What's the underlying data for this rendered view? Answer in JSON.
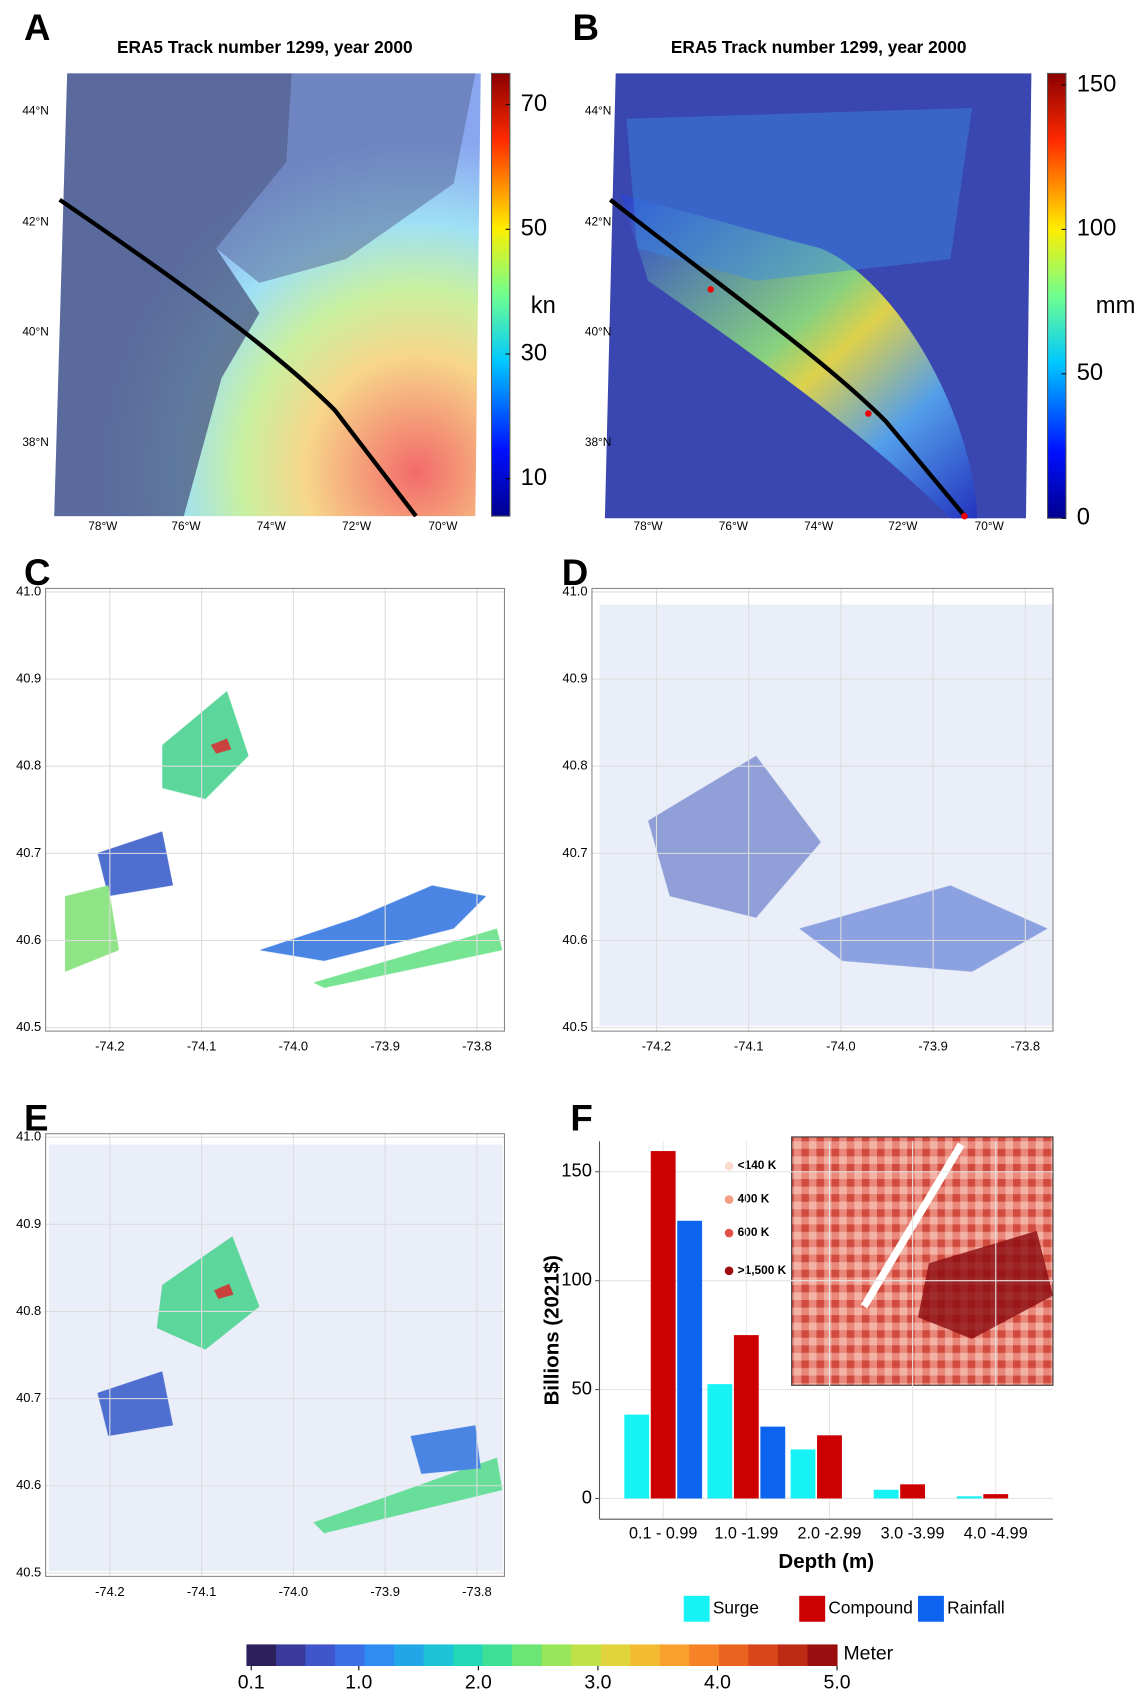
{
  "panel_labels": [
    "A",
    "B",
    "C",
    "D",
    "E",
    "F"
  ],
  "map_a": {
    "title": "ERA5 Track number 1299, year 2000",
    "lat_labels": [
      "44°N",
      "42°N",
      "40°N",
      "38°N"
    ],
    "lon_labels": [
      "78°W",
      "76°W",
      "74°W",
      "72°W",
      "70°W"
    ],
    "colorbar": {
      "unit": "kn",
      "lim": [
        4,
        75
      ],
      "ticks": [
        10,
        30,
        50,
        70
      ]
    }
  },
  "map_b": {
    "title": "ERA5 Track number 1299, year 2000",
    "lat_labels": [
      "44°N",
      "42°N",
      "40°N",
      "38°N"
    ],
    "lon_labels": [
      "78°W",
      "76°W",
      "74°W",
      "72°W",
      "70°W"
    ],
    "colorbar": {
      "unit": "mm",
      "lim": [
        0,
        154
      ],
      "ticks": [
        0,
        50,
        100,
        150
      ]
    }
  },
  "flood_maps": [
    {
      "xlim": [
        -74.27,
        -73.77
      ],
      "ylim": [
        40.496,
        41.004
      ],
      "xticks": [
        -74.2,
        -74.1,
        {
          "value": -74.0,
          "label": "-74.0"
        },
        -73.9,
        -73.8
      ],
      "yticks": [
        {
          "value": 41.0,
          "label": "41.0"
        },
        40.9,
        40.8,
        40.7,
        40.6,
        40.5
      ]
    },
    {
      "xlim": [
        -74.27,
        -73.77
      ],
      "ylim": [
        40.496,
        41.004
      ],
      "xticks": [
        -74.2,
        -74.1,
        {
          "value": -74.0,
          "label": "-74.0"
        },
        -73.9,
        -73.8
      ],
      "yticks": [
        {
          "value": 41.0,
          "label": "41.0"
        },
        40.9,
        40.8,
        40.7,
        40.6,
        40.5
      ]
    },
    {
      "xlim": [
        -74.27,
        -73.77
      ],
      "ylim": [
        40.496,
        41.004
      ],
      "xticks": [
        -74.2,
        -74.1,
        {
          "value": -74.0,
          "label": "-74.0"
        },
        -73.9,
        -73.8
      ],
      "yticks": [
        {
          "value": 41.0,
          "label": "41.0"
        },
        40.9,
        40.8,
        40.7,
        40.6,
        40.5
      ]
    }
  ],
  "depth_colorbar": {
    "unit": "Meter",
    "lim": [
      0.06,
      5.0
    ],
    "ticks": [
      0.1,
      {
        "value": 1.0,
        "label": "1.0"
      },
      {
        "value": 2.0,
        "label": "2.0"
      },
      {
        "value": 3.0,
        "label": "3.0"
      },
      {
        "value": 4.0,
        "label": "4.0"
      },
      {
        "value": 5.0,
        "label": "5.0"
      }
    ],
    "colors": [
      "#2d1e5c",
      "#3a3a9a",
      "#3f55c9",
      "#3a6fe6",
      "#2f8cf0",
      "#23a6e8",
      "#1cc2d6",
      "#22d6b8",
      "#3ee096",
      "#6be574",
      "#98e659",
      "#c0e248",
      "#e0d33c",
      "#f3bb32",
      "#f8a02b",
      "#f58226",
      "#ea6420",
      "#d8461b",
      "#bd2b15",
      "#990f0f"
    ]
  },
  "inset": {
    "legend": [
      "<140 K",
      "400 K",
      "600 K",
      ">1,500 K"
    ],
    "colors": [
      "#fbd9cf",
      "#f59c84",
      "#e1534a",
      "#9e0c12"
    ]
  },
  "chart_data": {
    "type": "bar",
    "categories": [
      "0.1 - 0.99",
      "1.0 -1.99",
      "2.0 -2.99",
      "3.0 -3.99",
      "4.0 -4.99"
    ],
    "series": [
      {
        "name": "Surge",
        "color": "#17f2f5",
        "values": [
          38.5,
          52.5,
          22.5,
          4,
          1
        ]
      },
      {
        "name": "Compound",
        "color": "#cc0000",
        "values": [
          159.5,
          75,
          29,
          6.5,
          2
        ]
      },
      {
        "name": "Rainfall",
        "color": "#0b63f0",
        "values": [
          127.5,
          33,
          null,
          null,
          null
        ]
      }
    ],
    "ylim": [
      -9.5,
      164
    ],
    "yticks": [
      0,
      50,
      100,
      150
    ],
    "xlabel": "Depth (m)",
    "ylabel": "Billions (2021$)",
    "grid": true
  }
}
